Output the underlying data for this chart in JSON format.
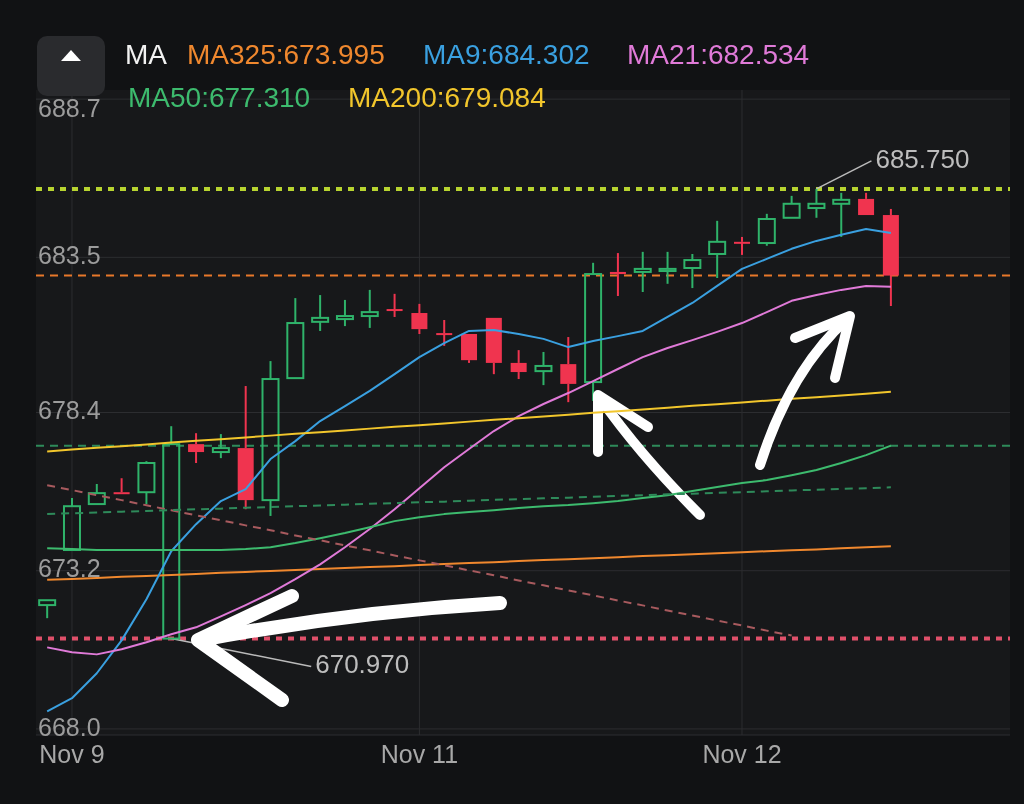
{
  "chart_data": {
    "type": "candlestick",
    "legend_title": "MA",
    "legend": "top",
    "grid": true,
    "categories": [
      null,
      "Nov 9",
      null,
      null,
      null,
      null,
      null,
      null,
      null,
      null,
      null,
      null,
      null,
      null,
      null,
      "Nov 11",
      null,
      null,
      null,
      null,
      null,
      null,
      null,
      null,
      null,
      null,
      null,
      null,
      "Nov 12",
      null,
      null,
      null,
      null,
      null,
      null
    ],
    "ylim": [
      667.8,
      689.0
    ],
    "yticks": [
      688.7,
      683.5,
      678.4,
      673.2,
      {
        "value": 668,
        "label": "668.0"
      }
    ],
    "ohlc": [
      [
        672.07,
        672.23,
        671.64,
        672.23
      ],
      [
        673.88,
        675.59,
        673.88,
        675.32
      ],
      [
        675.39,
        676.05,
        675.39,
        675.75
      ],
      [
        675.78,
        676.24,
        675.72,
        675.72
      ],
      [
        675.78,
        676.8,
        675.39,
        676.74
      ],
      [
        670.97,
        677.95,
        670.97,
        677.36
      ],
      [
        677.36,
        677.72,
        676.74,
        677.1
      ],
      [
        677.1,
        677.69,
        676.9,
        677.23
      ],
      [
        677.23,
        679.27,
        675.22,
        675.52
      ],
      [
        675.52,
        680.09,
        675.0,
        679.5
      ],
      [
        679.53,
        682.16,
        679.53,
        681.34
      ],
      [
        681.38,
        682.26,
        681.08,
        681.51
      ],
      [
        681.47,
        682.1,
        681.24,
        681.57
      ],
      [
        681.57,
        682.43,
        681.18,
        681.7
      ],
      [
        681.8,
        682.3,
        681.54,
        681.74
      ],
      [
        681.67,
        681.97,
        680.98,
        681.14
      ],
      [
        681.01,
        681.44,
        680.59,
        680.98
      ],
      [
        680.98,
        680.98,
        680.03,
        680.12
      ],
      [
        681.51,
        681.51,
        679.66,
        680.03
      ],
      [
        680.03,
        680.45,
        679.5,
        679.73
      ],
      [
        679.76,
        680.39,
        679.3,
        679.93
      ],
      [
        679.99,
        680.88,
        678.74,
        679.34
      ],
      [
        679.4,
        683.32,
        678.78,
        682.95
      ],
      [
        683.02,
        683.64,
        682.23,
        682.95
      ],
      [
        683.02,
        683.68,
        682.36,
        683.12
      ],
      [
        683.05,
        683.68,
        682.63,
        683.12
      ],
      [
        683.15,
        683.61,
        682.49,
        683.41
      ],
      [
        683.61,
        684.7,
        682.82,
        684.01
      ],
      [
        684.01,
        684.17,
        683.58,
        683.97
      ],
      [
        683.97,
        684.93,
        683.88,
        684.76
      ],
      [
        684.8,
        685.52,
        684.8,
        685.26
      ],
      [
        685.12,
        685.75,
        684.8,
        685.26
      ],
      [
        685.26,
        685.62,
        684.17,
        685.39
      ],
      [
        685.42,
        685.62,
        684.89,
        684.89
      ],
      [
        684.89,
        685.09,
        681.9,
        682.9
      ]
    ],
    "series": [
      {
        "type": "line",
        "name": "MA325:673.995",
        "color": "#f0882e",
        "values": [
          672.9,
          672.93,
          672.96,
          673.0,
          673.03,
          673.06,
          673.09,
          673.13,
          673.16,
          673.19,
          673.22,
          673.26,
          673.29,
          673.32,
          673.35,
          673.39,
          673.42,
          673.45,
          673.48,
          673.52,
          673.55,
          673.58,
          673.61,
          673.64,
          673.68,
          673.71,
          673.74,
          673.77,
          673.81,
          673.84,
          673.87,
          673.9,
          673.94,
          673.97,
          674.0
        ]
      },
      {
        "type": "line",
        "name": "MA9:684.302",
        "color": "#3aa0e0",
        "values": [
          668.58,
          669.01,
          669.83,
          670.91,
          672.26,
          673.84,
          674.73,
          675.49,
          675.88,
          676.87,
          677.46,
          678.12,
          678.61,
          679.11,
          679.66,
          680.22,
          680.68,
          681.08,
          681.11,
          680.98,
          680.82,
          680.55,
          680.75,
          680.91,
          681.08,
          681.54,
          682.0,
          682.56,
          683.12,
          683.45,
          683.78,
          684.04,
          684.24,
          684.43,
          684.3
        ]
      },
      {
        "type": "line",
        "name": "MA21:682.534",
        "color": "#e07ad8",
        "values": [
          670.68,
          670.52,
          670.45,
          670.62,
          670.85,
          671.11,
          671.34,
          671.7,
          672.07,
          672.46,
          672.92,
          673.41,
          673.97,
          674.57,
          675.22,
          675.91,
          676.6,
          677.2,
          677.79,
          678.28,
          678.68,
          679.04,
          679.43,
          679.83,
          680.22,
          680.52,
          680.78,
          681.05,
          681.34,
          681.7,
          682.07,
          682.26,
          682.43,
          682.56,
          682.53
        ]
      },
      {
        "type": "line",
        "name": "MA50:677.310",
        "color": "#3dbb6e",
        "values": [
          673.94,
          673.91,
          673.88,
          673.88,
          673.88,
          673.88,
          673.88,
          673.88,
          673.91,
          673.97,
          674.11,
          674.27,
          674.44,
          674.63,
          674.83,
          674.96,
          675.06,
          675.13,
          675.19,
          675.26,
          675.32,
          675.36,
          675.42,
          675.49,
          675.59,
          675.68,
          675.82,
          675.95,
          676.08,
          676.18,
          676.34,
          676.51,
          676.74,
          677.0,
          677.31
        ]
      },
      {
        "type": "line",
        "name": "MA200:679.084",
        "color": "#f2c62c",
        "values": [
          677.12,
          677.18,
          677.24,
          677.29,
          677.35,
          677.41,
          677.47,
          677.52,
          677.58,
          677.64,
          677.7,
          677.75,
          677.81,
          677.87,
          677.93,
          677.98,
          678.04,
          678.1,
          678.16,
          678.21,
          678.27,
          678.33,
          678.39,
          678.44,
          678.5,
          678.56,
          678.62,
          678.67,
          678.73,
          678.79,
          678.85,
          678.9,
          678.96,
          679.02,
          679.08
        ]
      },
      {
        "type": "line",
        "color": "#a85a5e",
        "line_style": "dashed",
        "values": [
          676.01,
          675.85,
          675.68,
          675.52,
          675.35,
          675.19,
          675.02,
          674.86,
          674.69,
          674.53,
          674.36,
          674.2,
          674.03,
          673.87,
          673.7,
          673.54,
          673.38,
          673.21,
          673.05,
          672.88,
          672.72,
          672.55,
          672.39,
          672.22,
          672.06,
          671.89,
          671.73,
          671.56,
          671.4,
          671.23,
          671.07,
          null,
          null,
          null,
          null
        ]
      },
      {
        "type": "line",
        "color": "#2e8a5a",
        "line_style": "dashed",
        "values": [
          675.06,
          675.09,
          675.11,
          675.14,
          675.16,
          675.19,
          675.22,
          675.24,
          675.27,
          675.29,
          675.32,
          675.34,
          675.37,
          675.4,
          675.42,
          675.45,
          675.47,
          675.5,
          675.53,
          675.55,
          675.58,
          675.6,
          675.63,
          675.66,
          675.68,
          675.71,
          675.73,
          675.76,
          675.78,
          675.81,
          675.84,
          675.86,
          675.89,
          675.91,
          675.94
        ]
      }
    ],
    "ref_lines": [
      {
        "axis": "y",
        "value": 685.75,
        "label": "685.750",
        "color": "#b8d430",
        "line_style": "dotted"
      },
      {
        "axis": "y",
        "value": 670.97,
        "label": "670.970",
        "color": "#e0506a",
        "line_style": "dotted"
      },
      {
        "axis": "y",
        "value": 682.9,
        "color": "#e8782a",
        "line_style": "dashed"
      },
      {
        "axis": "y",
        "value": 677.31,
        "color": "#2e8a5a",
        "line_style": "dashed"
      }
    ]
  }
}
